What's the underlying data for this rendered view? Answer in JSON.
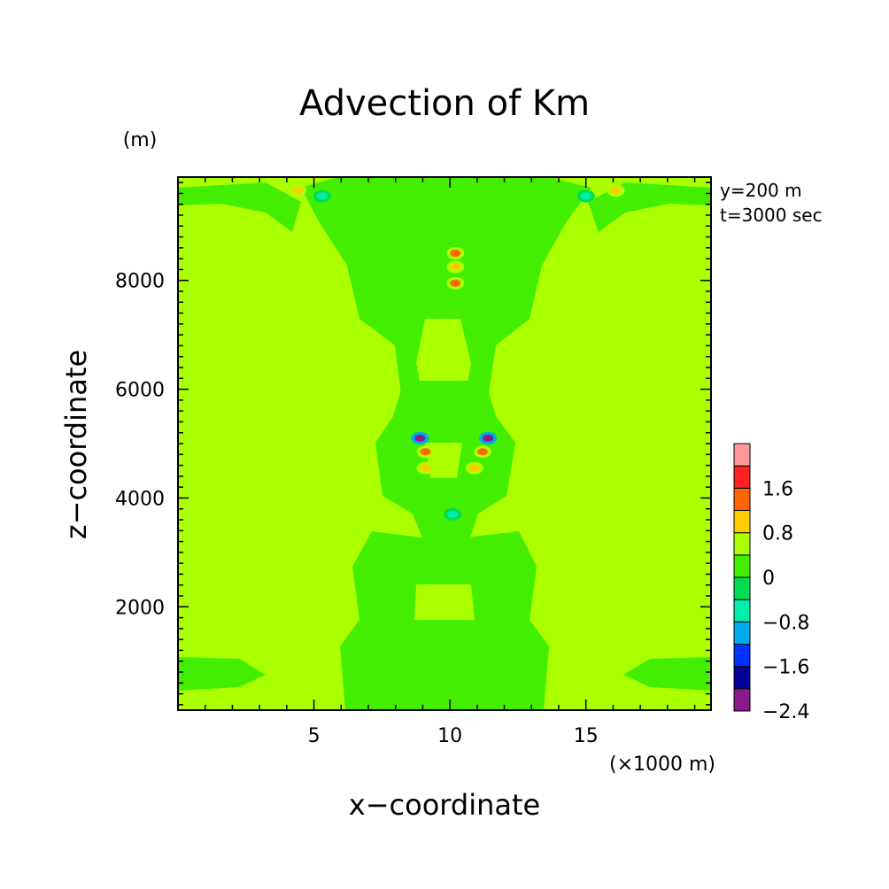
{
  "chart_data": {
    "type": "heatmap",
    "title": "Advection of Km",
    "xlabel": "x−coordinate",
    "ylabel": "z−coordinate",
    "x_unit": "(×1000 m)",
    "y_unit": "(m)",
    "xlim": [
      0,
      19.6
    ],
    "ylim": [
      100,
      9900
    ],
    "x_ticks": [
      5,
      10,
      15
    ],
    "x_tick_labels": [
      "5",
      "10",
      "15"
    ],
    "y_ticks": [
      2000,
      4000,
      6000,
      8000
    ],
    "y_tick_labels": [
      "2000",
      "4000",
      "6000",
      "8000"
    ],
    "annotations": [
      "y=200 m",
      "t=3000 sec"
    ],
    "colorbar": {
      "levels": [
        -2.4,
        -2.0,
        -1.6,
        -1.2,
        -0.8,
        -0.4,
        0,
        0.4,
        0.8,
        1.2,
        1.6,
        2.0
      ],
      "labels": [
        "1.6",
        "0.8",
        "0",
        "−0.8",
        "−1.6",
        "−2.4"
      ],
      "label_values": [
        1.6,
        0.8,
        0,
        -0.8,
        -1.6,
        -2.4
      ],
      "colors": [
        "#8b1a8b",
        "#000099",
        "#0033ff",
        "#00aaee",
        "#00eeaa",
        "#00dd55",
        "#44ee00",
        "#aaff00",
        "#ffcc00",
        "#ff6600",
        "#ff2222",
        "#ff9999"
      ]
    },
    "background_value": 0.2,
    "features": [
      {
        "x": 4.4,
        "y": 9650,
        "value": 0.9
      },
      {
        "x": 5.3,
        "y": 9550,
        "value": -0.7
      },
      {
        "x": 16.1,
        "y": 9650,
        "value": 0.9
      },
      {
        "x": 15.0,
        "y": 9550,
        "value": -0.7
      },
      {
        "x": 10.2,
        "y": 8500,
        "value": 1.5
      },
      {
        "x": 10.2,
        "y": 8250,
        "value": 0.9
      },
      {
        "x": 10.2,
        "y": 7950,
        "value": 1.5
      },
      {
        "x": 8.9,
        "y": 5100,
        "value": -2.2
      },
      {
        "x": 11.4,
        "y": 5100,
        "value": -2.2
      },
      {
        "x": 9.1,
        "y": 4850,
        "value": 1.3
      },
      {
        "x": 11.2,
        "y": 4850,
        "value": 1.3
      },
      {
        "x": 9.1,
        "y": 4550,
        "value": 0.9
      },
      {
        "x": 10.9,
        "y": 4550,
        "value": 0.9
      },
      {
        "x": 10.1,
        "y": 3700,
        "value": -0.7
      }
    ]
  }
}
